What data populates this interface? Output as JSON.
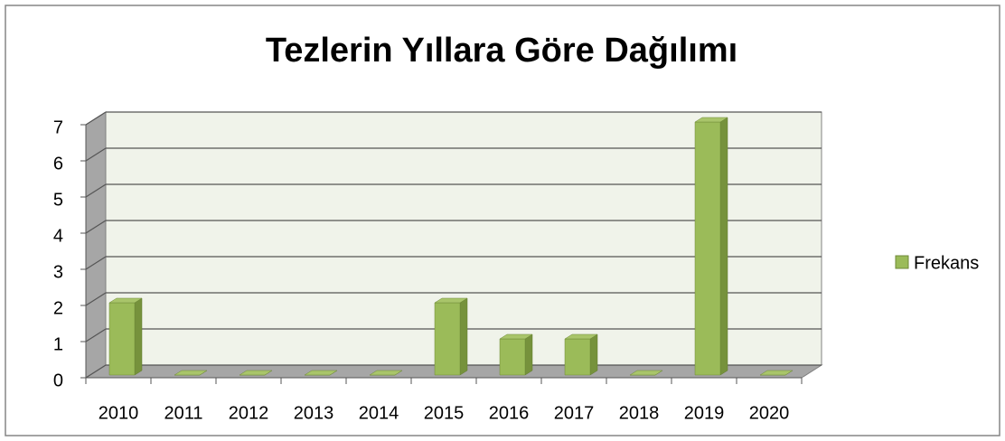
{
  "chart_data": {
    "type": "bar3d",
    "title": "Tezlerin Yıllara Göre Dağılımı",
    "categories": [
      "2010",
      "2011",
      "2012",
      "2013",
      "2014",
      "2015",
      "2016",
      "2017",
      "2018",
      "2019",
      "2020"
    ],
    "series": [
      {
        "name": "Frekans",
        "color": "#9bbb59",
        "values": [
          2,
          0,
          0,
          0,
          0,
          2,
          1,
          1,
          0,
          7,
          0
        ]
      }
    ],
    "ylim": [
      0,
      7
    ],
    "yticks": [
      0,
      1,
      2,
      3,
      4,
      5,
      6,
      7
    ],
    "grid": true,
    "legend": "right"
  }
}
